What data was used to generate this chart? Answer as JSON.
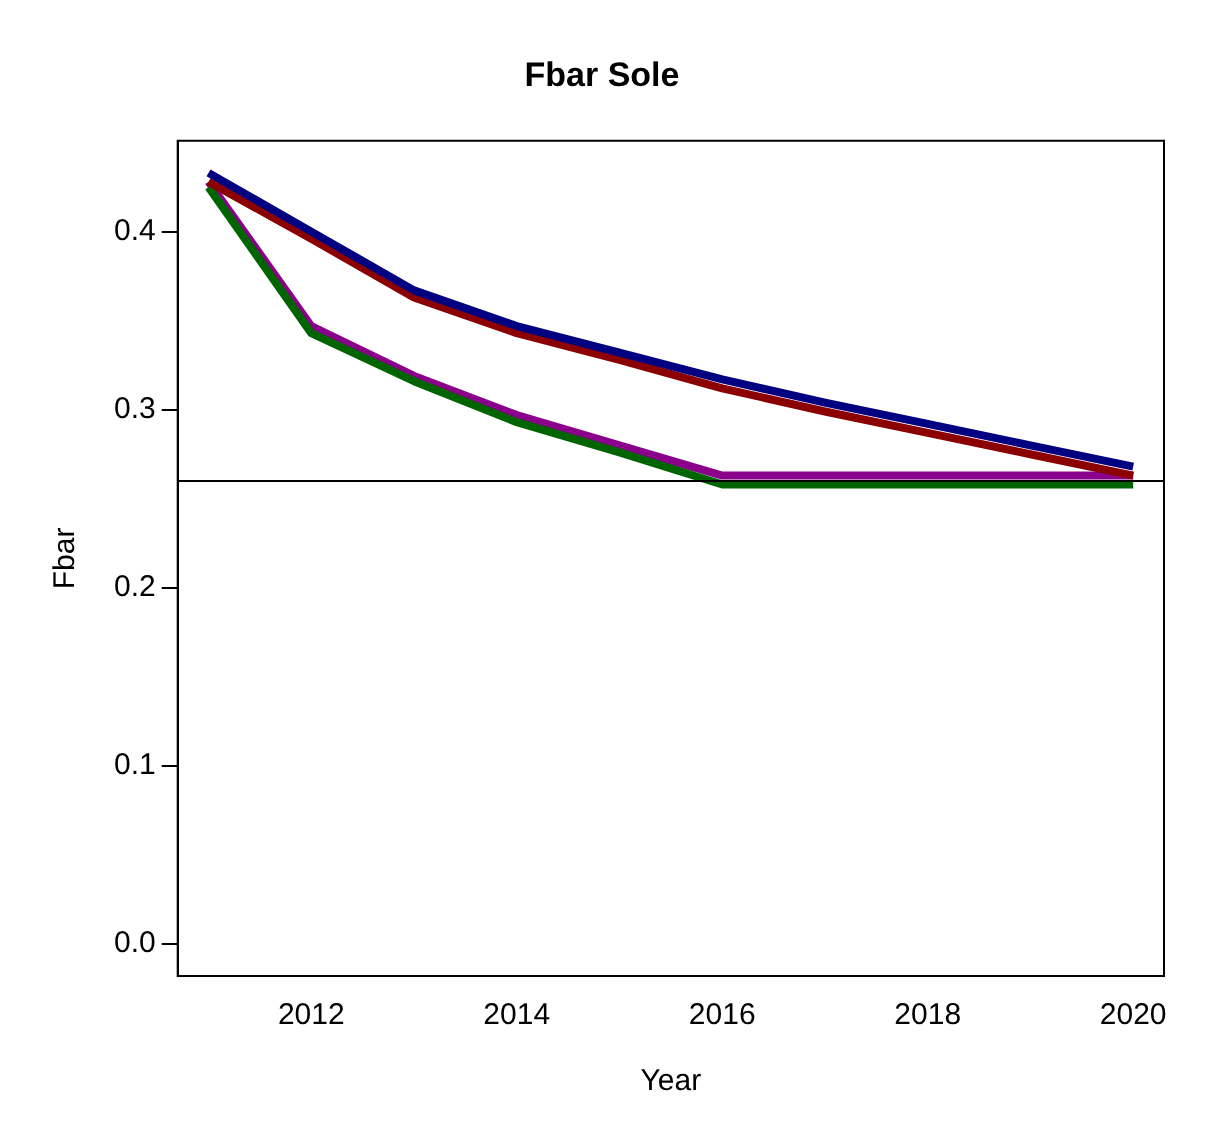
{
  "chart_data": {
    "type": "line",
    "title": "Fbar Sole",
    "xlabel": "Year",
    "ylabel": "Fbar",
    "x": [
      2011,
      2012,
      2013,
      2014,
      2015,
      2016,
      2017,
      2018,
      2019,
      2020
    ],
    "series": [
      {
        "color": "#000080",
        "values": [
          0.433,
          0.4,
          0.367,
          0.347,
          0.332,
          0.317,
          0.304,
          0.292,
          0.28,
          0.268
        ]
      },
      {
        "color": "#8b0000",
        "values": [
          0.428,
          0.396,
          0.363,
          0.343,
          0.328,
          0.312,
          0.299,
          0.287,
          0.275,
          0.263
        ]
      },
      {
        "color": "#006400",
        "values": [
          0.425,
          0.343,
          0.316,
          0.293,
          0.276,
          0.258,
          0.258,
          0.258,
          0.258,
          0.258
        ]
      },
      {
        "color": "#8b008b",
        "values": [
          0.428,
          0.347,
          0.319,
          0.297,
          0.28,
          0.263,
          0.263,
          0.263,
          0.263,
          0.263
        ]
      }
    ],
    "xlim": [
      2010.7,
      2020.3
    ],
    "xticks": [
      2012,
      2014,
      2016,
      2018,
      2020
    ],
    "ylim": [
      -0.018,
      0.451
    ],
    "yticks": [
      {
        "value": 0,
        "label": "0.0"
      },
      0.1,
      0.2,
      0.3,
      0.4
    ],
    "ref_lines": [
      {
        "axis": "y",
        "value": 0.26,
        "color": "#000000"
      }
    ],
    "grid": false,
    "legend": false,
    "marker": "none",
    "line_style": "solid"
  }
}
